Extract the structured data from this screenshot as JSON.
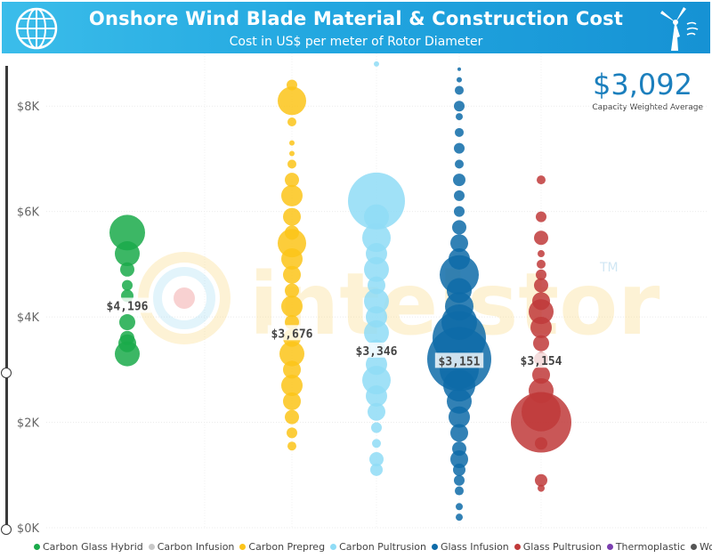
{
  "header": {
    "title": "Onshore Wind Blade Material & Construction Cost",
    "subtitle": "Cost in US$ per meter of Rotor Diameter",
    "globe_icon": "globe-icon",
    "turbine_icon": "wind-turbine-icon"
  },
  "kpi": {
    "value": "$3,092",
    "label": "Capacity Weighted Average"
  },
  "watermark": {
    "text": "intelstor",
    "tm": "TM"
  },
  "chart_data": {
    "type": "scatter",
    "title": "Onshore Wind Blade Material & Construction Cost",
    "subtitle": "Cost in US$ per meter of Rotor Diameter",
    "ylim": [
      0,
      9000
    ],
    "yticks": [
      0,
      2000,
      4000,
      6000,
      8000
    ],
    "ytick_labels": [
      "$0K",
      "$2K",
      "$4K",
      "$6K",
      "$8K"
    ],
    "grid": true,
    "legend_position": "bottom",
    "series": [
      {
        "name": "Carbon Glass Hybrid",
        "color": "#1aaa4a",
        "average": 4196,
        "average_label": "$4,196",
        "points": [
          [
            5600,
            20
          ],
          [
            5200,
            14
          ],
          [
            4900,
            8
          ],
          [
            4600,
            6
          ],
          [
            3900,
            9
          ],
          [
            3600,
            8
          ],
          [
            3300,
            14
          ],
          [
            3500,
            10
          ],
          [
            4400,
            7
          ]
        ]
      },
      {
        "name": "Carbon Infusion",
        "color": "#c8c8c8",
        "points": []
      },
      {
        "name": "Carbon Prepreg",
        "color": "#fcc419",
        "average": 3676,
        "average_label": "$3,676",
        "points": [
          [
            8400,
            6
          ],
          [
            8100,
            16
          ],
          [
            7700,
            5
          ],
          [
            7300,
            3
          ],
          [
            7100,
            3
          ],
          [
            6900,
            5
          ],
          [
            6600,
            8
          ],
          [
            6300,
            12
          ],
          [
            5900,
            10
          ],
          [
            5600,
            8
          ],
          [
            5400,
            16
          ],
          [
            5100,
            12
          ],
          [
            4800,
            10
          ],
          [
            4500,
            8
          ],
          [
            4200,
            12
          ],
          [
            3900,
            8
          ],
          [
            3600,
            10
          ],
          [
            3300,
            14
          ],
          [
            3000,
            10
          ],
          [
            2700,
            12
          ],
          [
            2400,
            10
          ],
          [
            2100,
            8
          ],
          [
            1800,
            6
          ],
          [
            1550,
            5
          ]
        ]
      },
      {
        "name": "Carbon Pultrusion",
        "color": "#8fdcf6",
        "average": 3346,
        "average_label": "$3,346",
        "points": [
          [
            8800,
            3
          ],
          [
            6200,
            32
          ],
          [
            5900,
            14
          ],
          [
            5500,
            16
          ],
          [
            5200,
            12
          ],
          [
            4900,
            14
          ],
          [
            4600,
            10
          ],
          [
            4300,
            14
          ],
          [
            4000,
            12
          ],
          [
            3700,
            14
          ],
          [
            3400,
            10
          ],
          [
            3100,
            12
          ],
          [
            2800,
            16
          ],
          [
            2500,
            12
          ],
          [
            2200,
            10
          ],
          [
            1900,
            6
          ],
          [
            1600,
            5
          ],
          [
            1300,
            8
          ],
          [
            1100,
            7
          ]
        ]
      },
      {
        "name": "Glass Infusion",
        "color": "#0e6ba8",
        "average": 3151,
        "average_label": "$3,151",
        "points": [
          [
            8700,
            2
          ],
          [
            8500,
            3
          ],
          [
            8300,
            5
          ],
          [
            8000,
            6
          ],
          [
            7800,
            4
          ],
          [
            7500,
            5
          ],
          [
            7200,
            6
          ],
          [
            6900,
            5
          ],
          [
            6600,
            7
          ],
          [
            6300,
            6
          ],
          [
            6000,
            6
          ],
          [
            5700,
            8
          ],
          [
            5400,
            10
          ],
          [
            5100,
            12
          ],
          [
            4800,
            22
          ],
          [
            4500,
            14
          ],
          [
            4200,
            16
          ],
          [
            3900,
            20
          ],
          [
            3600,
            30
          ],
          [
            3200,
            36
          ],
          [
            3000,
            22
          ],
          [
            2700,
            18
          ],
          [
            2400,
            14
          ],
          [
            2100,
            12
          ],
          [
            1800,
            10
          ],
          [
            1500,
            8
          ],
          [
            1300,
            10
          ],
          [
            1100,
            7
          ],
          [
            900,
            6
          ],
          [
            700,
            5
          ],
          [
            400,
            4
          ],
          [
            200,
            4
          ]
        ]
      },
      {
        "name": "Glass Pultrusion",
        "color": "#c03a3a",
        "average": 3154,
        "average_label": "$3,154",
        "points": [
          [
            6600,
            5
          ],
          [
            5900,
            6
          ],
          [
            5500,
            8
          ],
          [
            5200,
            4
          ],
          [
            5000,
            5
          ],
          [
            4800,
            6
          ],
          [
            4600,
            8
          ],
          [
            4300,
            10
          ],
          [
            4100,
            14
          ],
          [
            3800,
            12
          ],
          [
            3500,
            9
          ],
          [
            3200,
            8
          ],
          [
            2900,
            10
          ],
          [
            2600,
            14
          ],
          [
            2200,
            22
          ],
          [
            2000,
            34
          ],
          [
            1600,
            7
          ],
          [
            900,
            7
          ],
          [
            750,
            4
          ]
        ]
      },
      {
        "name": "Thermoplastic",
        "color": "#7b3fb0",
        "points": []
      },
      {
        "name": "Wood",
        "color": "#555555",
        "points": []
      }
    ]
  }
}
